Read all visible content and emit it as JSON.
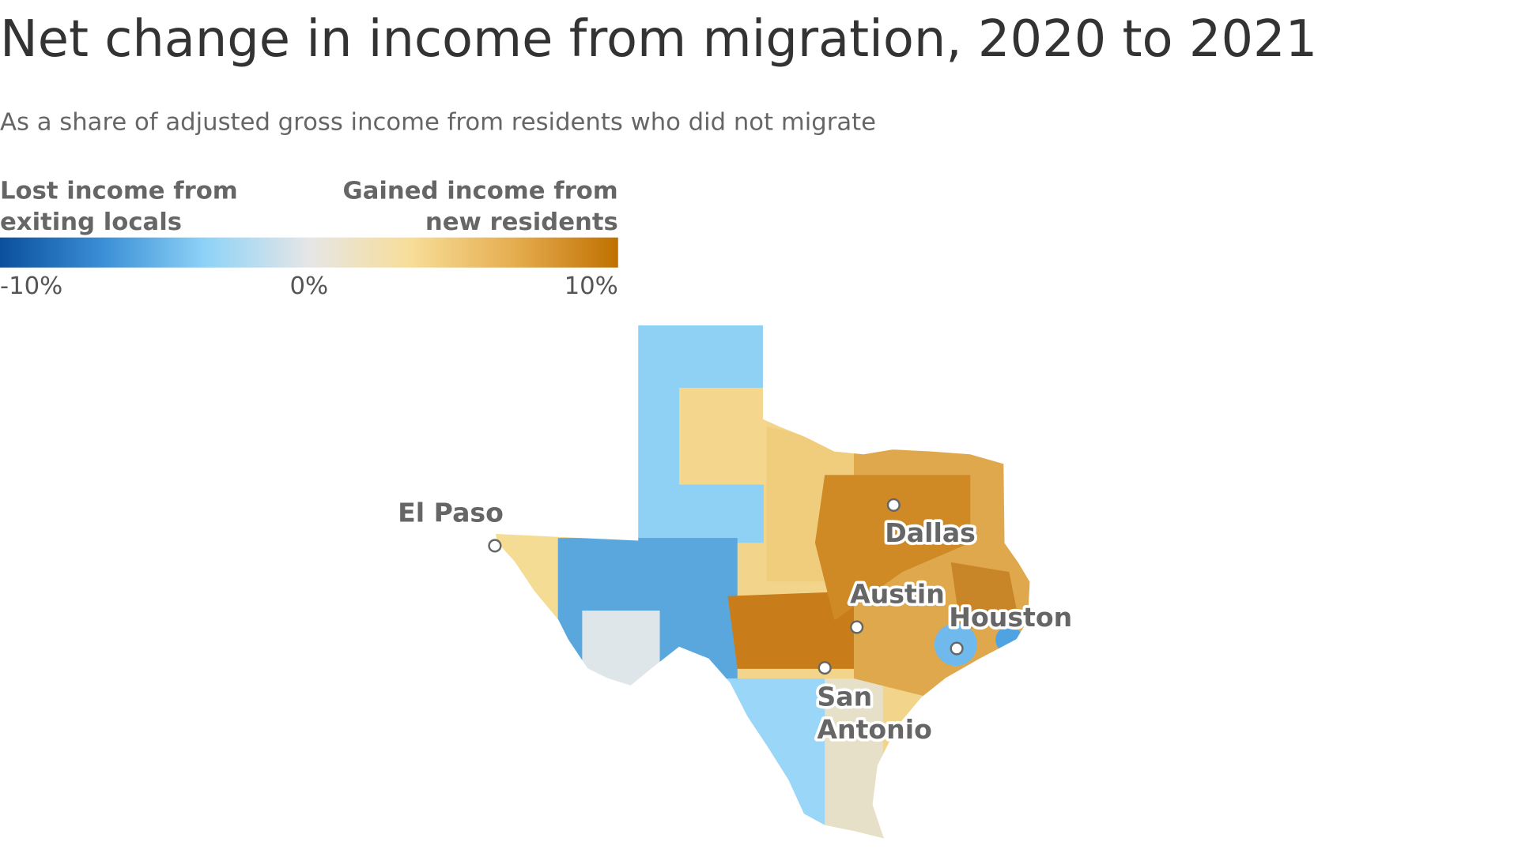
{
  "header": {
    "title": "Net change in income from migration, 2020 to 2021",
    "subtitle": "As a share of adjusted gross income from residents who did not migrate"
  },
  "legend": {
    "left_label": [
      "Lost income from",
      "exiting locals"
    ],
    "right_label": [
      "Gained income from",
      "new residents"
    ],
    "range": [
      -10,
      10
    ],
    "colors": [
      "#0b4f9c",
      "#3a8fd6",
      "#8fd3f7",
      "#e6e6e6",
      "#f7dd97",
      "#e5ad4f",
      "#c07000"
    ],
    "ticks": [
      {
        "value": -10,
        "label": "-10%"
      },
      {
        "value": 0,
        "label": "0%"
      },
      {
        "value": 10,
        "label": "10%"
      }
    ]
  },
  "map": {
    "cities": [
      "El Paso",
      "Dallas",
      "Austin",
      "Houston",
      "San Antonio"
    ]
  }
}
